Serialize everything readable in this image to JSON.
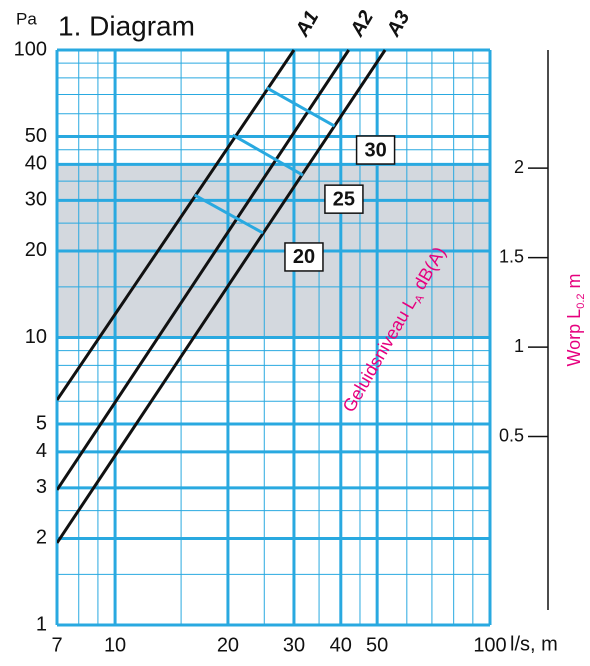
{
  "chart_data": {
    "type": "line",
    "title": "1. Diagram",
    "x_label": "l/s, m",
    "y_label": "Pa",
    "log_x": true,
    "log_y": true,
    "grid": true,
    "xlim": [
      7,
      100
    ],
    "xticks": [
      7,
      10,
      20,
      30,
      40,
      50,
      100
    ],
    "xminor": [
      8,
      9,
      15,
      25,
      35,
      45,
      60,
      70,
      80,
      90
    ],
    "ylim": [
      1,
      100
    ],
    "yticks": [
      1,
      2,
      3,
      4,
      5,
      10,
      20,
      30,
      40,
      50,
      100
    ],
    "yminor": [
      1.5,
      2.5,
      6,
      7,
      8,
      9,
      15,
      25,
      35,
      45,
      60,
      70,
      80,
      90
    ],
    "shaded_band": [
      10,
      40
    ],
    "band_color": "#d3d8de",
    "grid_color": "#29a9e0",
    "series": [
      {
        "name": "A1",
        "color": "#111111",
        "x": [
          7,
          30
        ],
        "values": [
          6.06,
          100
        ]
      },
      {
        "name": "A2",
        "color": "#111111",
        "x": [
          7,
          42
        ],
        "values": [
          2.95,
          100
        ]
      },
      {
        "name": "A3",
        "color": "#111111",
        "x": [
          7,
          52.5
        ],
        "values": [
          1.93,
          100
        ]
      }
    ],
    "sound_levels": [
      {
        "name": "30",
        "color": "#29a9e0",
        "x": [
          25.4,
          38.5
        ],
        "values": [
          73.8,
          54.4
        ]
      },
      {
        "name": "25",
        "color": "#29a9e0",
        "x": [
          20.6,
          31.7
        ],
        "values": [
          50.6,
          36.7
        ]
      },
      {
        "name": "20",
        "color": "#29a9e0",
        "x": [
          16.3,
          24.8
        ],
        "values": [
          31.3,
          23.1
        ]
      }
    ],
    "sound_label": [
      "Geluidsniveau L",
      "A",
      " dB(A)"
    ],
    "label_color": "#e6007e",
    "y2lim": [
      -0.553,
      2.66
    ],
    "y2ticks": [
      0.5,
      1,
      1.5,
      2
    ],
    "y2_label": [
      "Worp L",
      "0.2",
      " m"
    ]
  }
}
